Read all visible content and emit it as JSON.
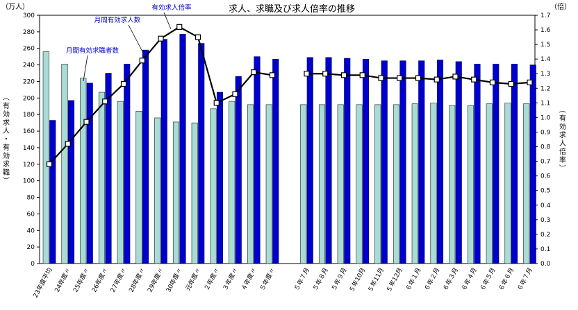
{
  "chart_data": {
    "type": "bar",
    "title": "求人、求職及び求人倍率の推移",
    "left_unit": "（万人）",
    "right_unit": "（倍）",
    "ylabel": "（有効求人・有効求職）",
    "y2label": "（有効求人倍率）",
    "ylim": [
      0,
      300
    ],
    "y2lim": [
      0.0,
      1.7
    ],
    "yticks": [
      "0",
      "20",
      "40",
      "60",
      "80",
      "100",
      "120",
      "140",
      "160",
      "180",
      "200",
      "220",
      "240",
      "260",
      "280",
      "300"
    ],
    "y2ticks": [
      "0.0",
      "0.1",
      "0.2",
      "0.3",
      "0.4",
      "0.5",
      "0.6",
      "0.7",
      "0.8",
      "0.9",
      "1.0",
      "1.1",
      "1.2",
      "1.3",
      "1.4",
      "1.5",
      "1.6",
      "1.7"
    ],
    "categories": [
      "23年度平均",
      "24年度〃",
      "25年度〃",
      "26年度〃",
      "27年度〃",
      "28年度〃",
      "29年度〃",
      "30年度〃",
      "元年度〃",
      "２年度〃",
      "３年度〃",
      "４年度〃",
      "５年度〃",
      "５年７月",
      "５年８月",
      "５年９月",
      "５年10月",
      "５年11月",
      "５年12月",
      "６年１月",
      "６年２月",
      "６年３月",
      "６年４月",
      "６年５月",
      "６年６月",
      "６年７月"
    ],
    "series": [
      {
        "name": "月間有効求職者数",
        "kind": "bar",
        "color": "#a8dcd4",
        "values": [
          256,
          241,
          224,
          207,
          196,
          184,
          176,
          171,
          170,
          187,
          196,
          192,
          192,
          192,
          192,
          192,
          192,
          192,
          192,
          193,
          194,
          191,
          191,
          193,
          194,
          193
        ]
      },
      {
        "name": "月間有効求人数",
        "kind": "bar",
        "color": "#0000cc",
        "values": [
          173,
          197,
          218,
          230,
          241,
          258,
          271,
          277,
          266,
          207,
          226,
          250,
          247,
          249,
          249,
          248,
          247,
          245,
          245,
          245,
          246,
          244,
          241,
          241,
          241,
          240
        ]
      },
      {
        "name": "有効求人倍率",
        "kind": "line",
        "axis": "right",
        "color": "#000000",
        "values": [
          0.68,
          0.82,
          0.97,
          1.11,
          1.23,
          1.39,
          1.54,
          1.62,
          1.55,
          1.1,
          1.16,
          1.31,
          1.29,
          1.3,
          1.3,
          1.29,
          1.29,
          1.27,
          1.27,
          1.27,
          1.26,
          1.28,
          1.26,
          1.24,
          1.23,
          1.24
        ]
      }
    ],
    "annotations": [
      "有効求人倍率",
      "月間有効求人数",
      "月間有効求職者数"
    ]
  }
}
